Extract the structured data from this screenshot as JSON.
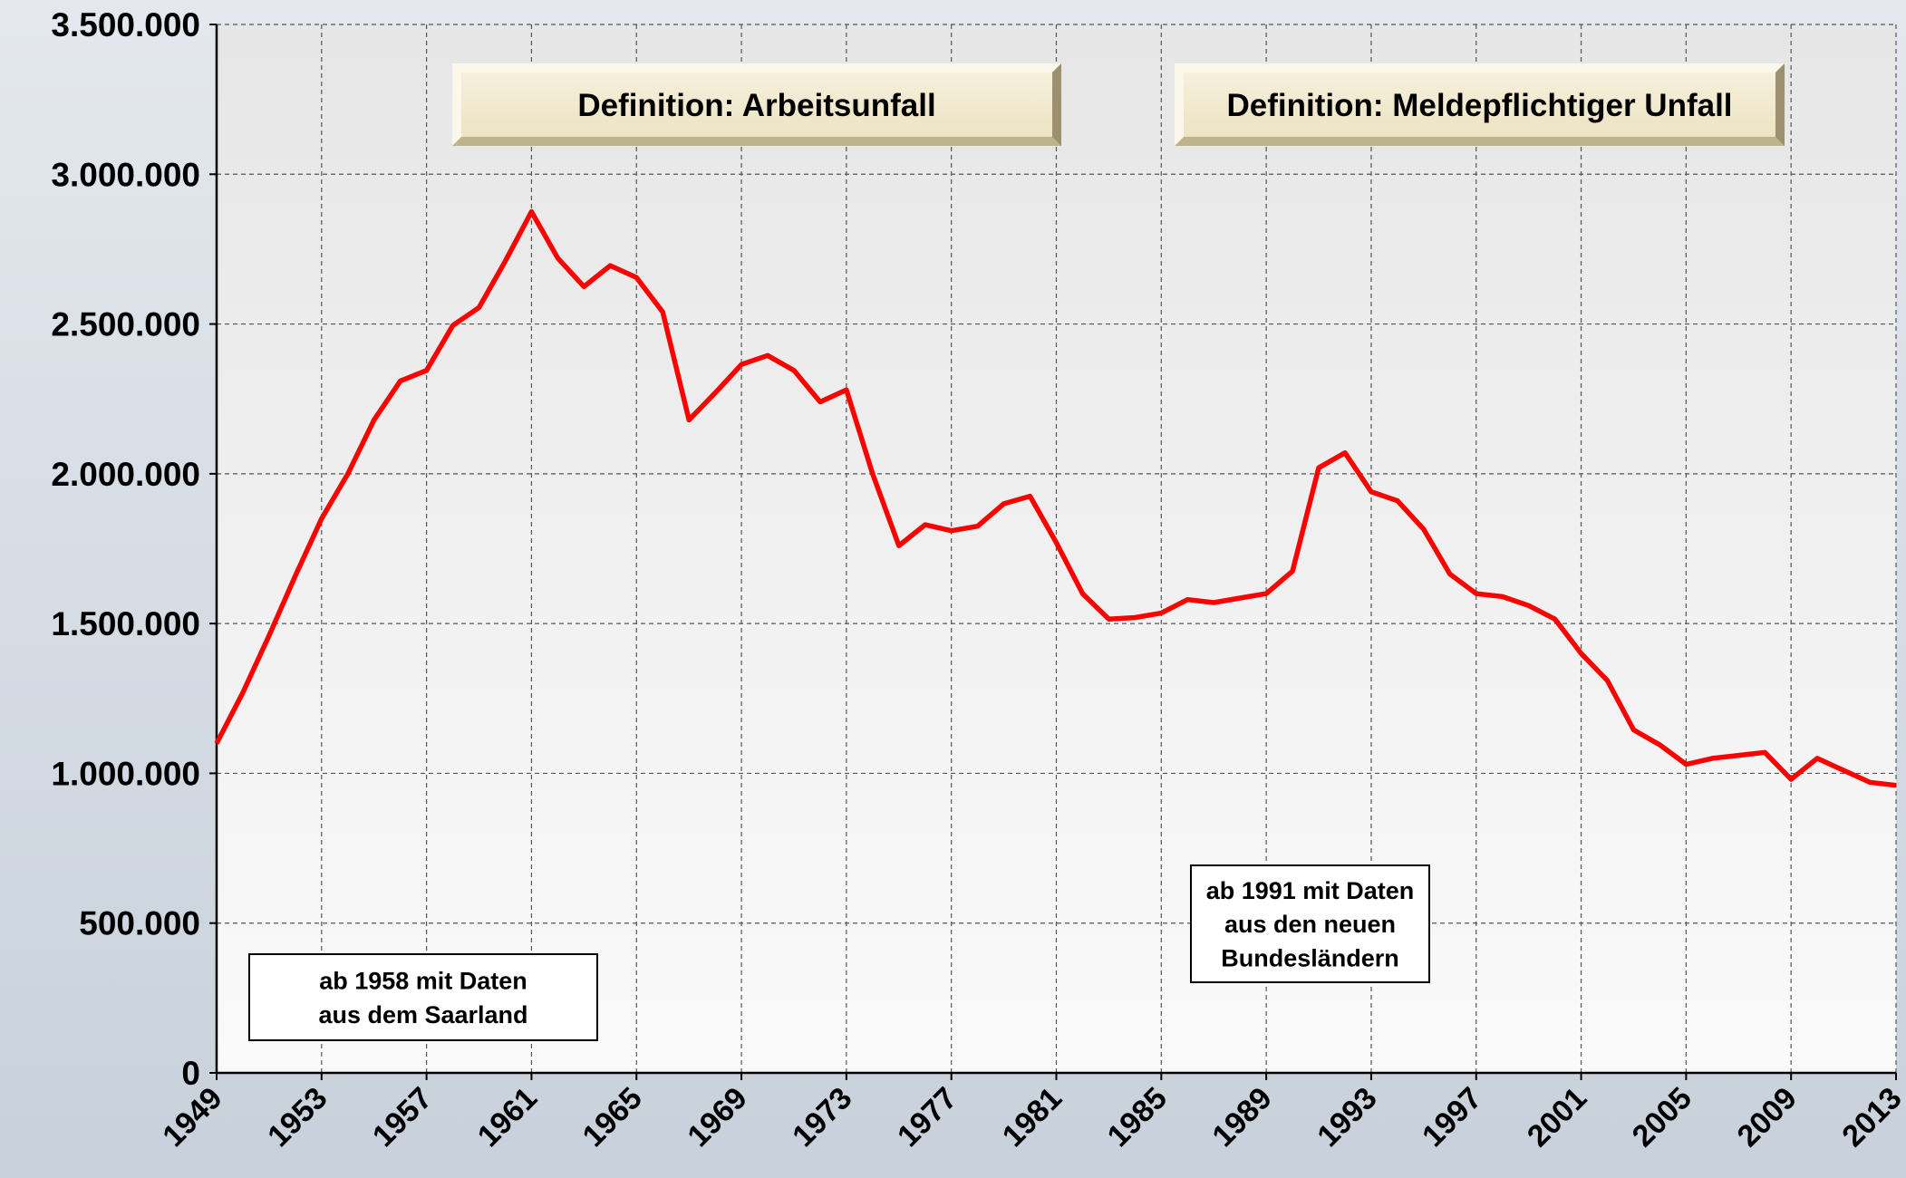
{
  "chart_data": {
    "type": "line",
    "x": [
      1949,
      1950,
      1951,
      1952,
      1953,
      1954,
      1955,
      1956,
      1957,
      1958,
      1959,
      1960,
      1961,
      1962,
      1963,
      1964,
      1965,
      1966,
      1967,
      1968,
      1969,
      1970,
      1971,
      1972,
      1973,
      1974,
      1975,
      1976,
      1977,
      1978,
      1979,
      1980,
      1981,
      1982,
      1983,
      1984,
      1985,
      1986,
      1987,
      1988,
      1989,
      1990,
      1991,
      1992,
      1993,
      1994,
      1995,
      1996,
      1997,
      1998,
      1999,
      2000,
      2001,
      2002,
      2003,
      2004,
      2005,
      2006,
      2007,
      2008,
      2009,
      2010,
      2011,
      2012,
      2013
    ],
    "values": [
      1100000,
      1270000,
      1460000,
      1660000,
      1850000,
      2000000,
      2180000,
      2310000,
      2345000,
      2495000,
      2555000,
      2710000,
      2875000,
      2720000,
      2625000,
      2695000,
      2655000,
      2540000,
      2180000,
      2270000,
      2365000,
      2395000,
      2345000,
      2240000,
      2280000,
      2000000,
      1760000,
      1830000,
      1810000,
      1825000,
      1900000,
      1925000,
      1770000,
      1600000,
      1515000,
      1520000,
      1535000,
      1580000,
      1570000,
      1585000,
      1600000,
      1675000,
      2020000,
      2070000,
      1940000,
      1910000,
      1815000,
      1665000,
      1600000,
      1590000,
      1560000,
      1515000,
      1400000,
      1310000,
      1145000,
      1095000,
      1030000,
      1050000,
      1060000,
      1070000,
      980000,
      1050000,
      1010000,
      970000,
      960000
    ],
    "color": "#ff0000",
    "xlim": [
      1949,
      2013
    ],
    "xticks": [
      1949,
      1953,
      1957,
      1961,
      1965,
      1969,
      1973,
      1977,
      1981,
      1985,
      1989,
      1993,
      1997,
      2001,
      2005,
      2009,
      2013
    ],
    "ylim": [
      0,
      3500000
    ],
    "yticks": [
      0,
      {
        "value": 500000,
        "label": "500.000"
      },
      {
        "value": 1000000,
        "label": "1.000.000"
      },
      {
        "value": 1500000,
        "label": "1.500.000"
      },
      {
        "value": 2000000,
        "label": "2.000.000"
      },
      {
        "value": 2500000,
        "label": "2.500.000"
      },
      {
        "value": 3000000,
        "label": "3.000.000"
      },
      {
        "value": 3500000,
        "label": "3.500.000"
      }
    ],
    "grid": true,
    "annotations": [
      {
        "text": [
          "Definition: Arbeitsunfall"
        ]
      },
      {
        "text": [
          "Definition: Meldepflichtiger Unfall"
        ]
      },
      {
        "text": [
          "ab 1958 mit Daten",
          "aus dem Saarland"
        ]
      },
      {
        "text": [
          "ab 1991 mit Daten",
          "aus den neuen",
          "Bundesländern"
        ]
      }
    ]
  }
}
